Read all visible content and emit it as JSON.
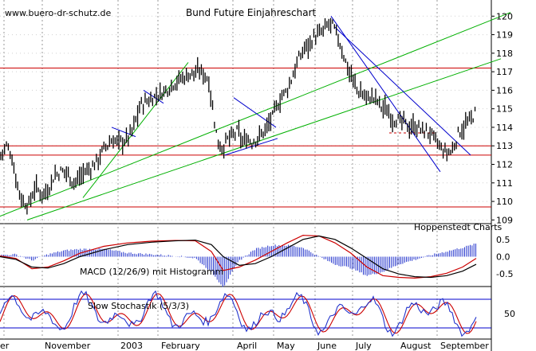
{
  "header": {
    "watermark": "www.buero-dr-schutz.de",
    "title": "Bund Future Einjahreschart",
    "credit": "Hoppenstedt Charts"
  },
  "chart_data": [
    {
      "type": "candlestick",
      "title": "Bund Future Einjahreschart",
      "ylim": [
        108.8,
        120.7
      ],
      "yticks": [
        109,
        110,
        111,
        112,
        113,
        114,
        115,
        116,
        117,
        118,
        119,
        120
      ],
      "x_months": [
        "er",
        "November",
        "2003",
        "February",
        "April",
        "May",
        "June",
        "July",
        "August",
        "September"
      ],
      "price_path_close": [
        [
          0,
          112.4
        ],
        [
          8,
          113.0
        ],
        [
          14,
          112.6
        ],
        [
          20,
          111.2
        ],
        [
          28,
          110.0
        ],
        [
          36,
          109.8
        ],
        [
          44,
          110.8
        ],
        [
          52,
          110.4
        ],
        [
          60,
          110.6
        ],
        [
          68,
          111.4
        ],
        [
          76,
          111.6
        ],
        [
          84,
          111.6
        ],
        [
          92,
          111.0
        ],
        [
          98,
          111.2
        ],
        [
          106,
          111.6
        ],
        [
          114,
          111.8
        ],
        [
          122,
          112.2
        ],
        [
          130,
          112.8
        ],
        [
          140,
          113.3
        ],
        [
          148,
          113.2
        ],
        [
          158,
          113.3
        ],
        [
          166,
          113.8
        ],
        [
          176,
          115.2
        ],
        [
          184,
          115.4
        ],
        [
          192,
          115.6
        ],
        [
          200,
          115.8
        ],
        [
          208,
          116.0
        ],
        [
          218,
          116.4
        ],
        [
          226,
          116.6
        ],
        [
          234,
          116.8
        ],
        [
          242,
          116.9
        ],
        [
          250,
          117.0
        ],
        [
          256,
          116.9
        ],
        [
          262,
          116.5
        ],
        [
          266,
          115.2
        ],
        [
          270,
          114.0
        ],
        [
          274,
          113.1
        ],
        [
          280,
          112.9
        ],
        [
          286,
          113.4
        ],
        [
          292,
          113.5
        ],
        [
          298,
          113.8
        ],
        [
          304,
          113.2
        ],
        [
          310,
          113.4
        ],
        [
          316,
          113.2
        ],
        [
          322,
          113.4
        ],
        [
          328,
          113.6
        ],
        [
          334,
          114.0
        ],
        [
          340,
          114.4
        ],
        [
          346,
          115.0
        ],
        [
          352,
          115.6
        ],
        [
          358,
          115.9
        ],
        [
          364,
          116.4
        ],
        [
          370,
          117.2
        ],
        [
          376,
          117.8
        ],
        [
          382,
          118.3
        ],
        [
          388,
          118.5
        ],
        [
          394,
          118.9
        ],
        [
          400,
          119.0
        ],
        [
          406,
          119.2
        ],
        [
          412,
          119.6
        ],
        [
          418,
          119.4
        ],
        [
          424,
          118.8
        ],
        [
          430,
          118.0
        ],
        [
          436,
          117.2
        ],
        [
          442,
          116.6
        ],
        [
          448,
          116.0
        ],
        [
          454,
          115.8
        ],
        [
          460,
          115.6
        ],
        [
          466,
          115.6
        ],
        [
          472,
          115.5
        ],
        [
          478,
          115.1
        ],
        [
          484,
          115.0
        ],
        [
          490,
          114.6
        ],
        [
          496,
          114.4
        ],
        [
          502,
          114.3
        ],
        [
          508,
          114.2
        ],
        [
          514,
          114.0
        ],
        [
          520,
          114.1
        ],
        [
          526,
          113.9
        ],
        [
          532,
          113.8
        ],
        [
          538,
          113.7
        ],
        [
          544,
          113.4
        ],
        [
          550,
          113.0
        ],
        [
          556,
          112.7
        ],
        [
          562,
          112.6
        ],
        [
          568,
          112.8
        ],
        [
          574,
          113.6
        ],
        [
          580,
          114.0
        ],
        [
          586,
          114.2
        ],
        [
          592,
          114.5
        ],
        [
          597,
          114.9
        ]
      ],
      "horizontal_levels": [
        117.2,
        113.0,
        112.5,
        109.7
      ],
      "dashed_level": [
        113.7,
        [
          488,
          545
        ]
      ],
      "trendlines": [
        {
          "color": "#00b000",
          "from": [
            0,
            109.2
          ],
          "to": [
            640,
            120.2
          ]
        },
        {
          "color": "#00b000",
          "from": [
            34,
            109.0
          ],
          "to": [
            628,
            117.7
          ]
        },
        {
          "color": "#00b000",
          "from": [
            104,
            110.2
          ],
          "to": [
            236,
            117.5
          ]
        },
        {
          "color": "#0000cc",
          "from": [
            415,
            120.0
          ],
          "to": [
            552,
            111.6
          ]
        },
        {
          "color": "#0000cc",
          "from": [
            420,
            119.4
          ],
          "to": [
            590,
            112.5
          ]
        },
        {
          "color": "#0000cc",
          "from": [
            282,
            112.5
          ],
          "to": [
            348,
            113.4
          ]
        },
        {
          "color": "#0000cc",
          "from": [
            293,
            115.6
          ],
          "to": [
            346,
            114.0
          ]
        },
        {
          "color": "#0000cc",
          "from": [
            140,
            114.0
          ],
          "to": [
            170,
            113.5
          ]
        },
        {
          "color": "#0000cc",
          "from": [
            180,
            116.0
          ],
          "to": [
            205,
            115.3
          ]
        }
      ]
    },
    {
      "type": "line",
      "title": "MACD (12/26/9) mit Histogramm",
      "ylim": [
        -0.75,
        0.75
      ],
      "yticks": [
        0.5,
        0.0,
        -0.5
      ],
      "series": [
        {
          "color": "#cc0000",
          "values": [
            [
              0,
              0.02
            ],
            [
              20,
              -0.05
            ],
            [
              40,
              -0.35
            ],
            [
              60,
              -0.3
            ],
            [
              80,
              -0.12
            ],
            [
              100,
              0.1
            ],
            [
              130,
              0.3
            ],
            [
              160,
              0.4
            ],
            [
              190,
              0.45
            ],
            [
              220,
              0.47
            ],
            [
              245,
              0.46
            ],
            [
              265,
              0.15
            ],
            [
              280,
              -0.4
            ],
            [
              300,
              -0.3
            ],
            [
              320,
              -0.1
            ],
            [
              340,
              0.15
            ],
            [
              360,
              0.4
            ],
            [
              380,
              0.62
            ],
            [
              400,
              0.6
            ],
            [
              420,
              0.4
            ],
            [
              440,
              0.1
            ],
            [
              460,
              -0.3
            ],
            [
              480,
              -0.55
            ],
            [
              500,
              -0.6
            ],
            [
              520,
              -0.62
            ],
            [
              540,
              -0.58
            ],
            [
              560,
              -0.48
            ],
            [
              580,
              -0.3
            ],
            [
              597,
              -0.05
            ]
          ]
        },
        {
          "color": "#000000",
          "values": [
            [
              0,
              0.0
            ],
            [
              20,
              -0.08
            ],
            [
              40,
              -0.3
            ],
            [
              60,
              -0.33
            ],
            [
              80,
              -0.2
            ],
            [
              100,
              0.0
            ],
            [
              130,
              0.2
            ],
            [
              160,
              0.35
            ],
            [
              190,
              0.42
            ],
            [
              220,
              0.46
            ],
            [
              245,
              0.48
            ],
            [
              265,
              0.35
            ],
            [
              280,
              0.0
            ],
            [
              300,
              -0.25
            ],
            [
              320,
              -0.2
            ],
            [
              340,
              0.0
            ],
            [
              360,
              0.25
            ],
            [
              380,
              0.5
            ],
            [
              400,
              0.6
            ],
            [
              420,
              0.5
            ],
            [
              440,
              0.25
            ],
            [
              460,
              -0.05
            ],
            [
              480,
              -0.35
            ],
            [
              500,
              -0.5
            ],
            [
              520,
              -0.58
            ],
            [
              540,
              -0.6
            ],
            [
              560,
              -0.55
            ],
            [
              580,
              -0.42
            ],
            [
              597,
              -0.22
            ]
          ]
        }
      ]
    },
    {
      "type": "line",
      "title": "Slow Stochastik (5/3/3)",
      "ylim": [
        0,
        100
      ],
      "yticks": [
        50
      ],
      "guide_levels": [
        80,
        20
      ]
    }
  ]
}
